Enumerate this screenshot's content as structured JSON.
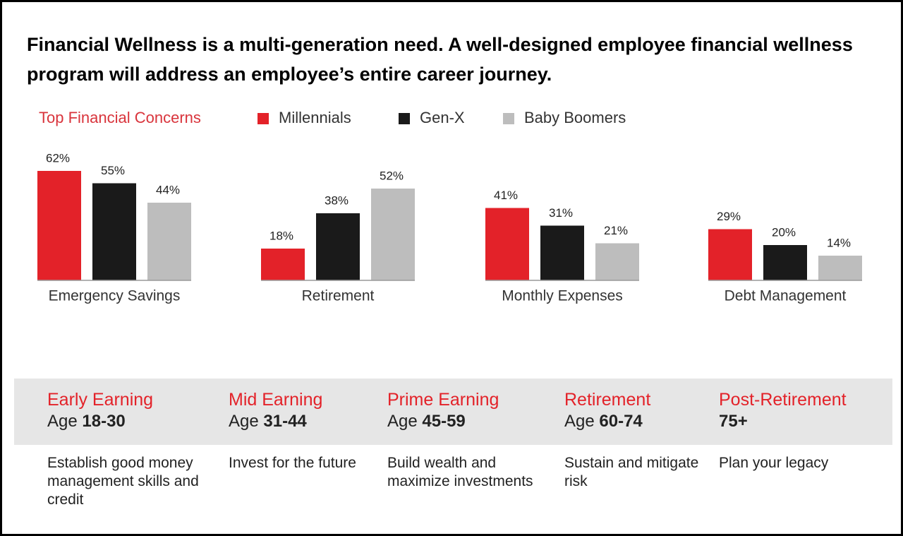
{
  "header": {
    "text": "Financial Wellness is a multi-generation need. A well-designed employee financial wellness program will address an employee’s entire career journey."
  },
  "chart_data": {
    "type": "bar",
    "title": "Top Financial Concerns",
    "categories": [
      "Emergency Savings",
      "Retirement",
      "Monthly Expenses",
      "Debt Management"
    ],
    "series": [
      {
        "name": "Millennials",
        "color": "#e32229",
        "values": [
          62,
          18,
          41,
          29
        ],
        "value_labels": [
          "62%",
          "18%",
          "41%",
          "29%"
        ]
      },
      {
        "name": "Gen-X",
        "color": "#1a1a1a",
        "values": [
          55,
          38,
          31,
          20
        ],
        "value_labels": [
          "55%",
          "38%",
          "31%",
          "20%"
        ]
      },
      {
        "name": "Baby Boomers",
        "color": "#bdbdbd",
        "values": [
          44,
          52,
          21,
          14
        ],
        "value_labels": [
          "44%",
          "52%",
          "21%",
          "14%"
        ]
      }
    ]
  },
  "stages": [
    {
      "name": "Early Earning",
      "age_prefix": "Age",
      "age": "18-30",
      "description": "Establish good money management skills and credit"
    },
    {
      "name": "Mid Earning",
      "age_prefix": "Age",
      "age": "31-44",
      "description": "Invest for the future"
    },
    {
      "name": "Prime Earning",
      "age_prefix": "Age",
      "age": "45-59",
      "description": "Build wealth and maximize investments"
    },
    {
      "name": "Retirement",
      "age_prefix": "Age",
      "age": "60-74",
      "description": "Sustain and mitigate risk"
    },
    {
      "name": "Post-Retirement",
      "age": "75+",
      "description": "Plan your legacy"
    }
  ]
}
